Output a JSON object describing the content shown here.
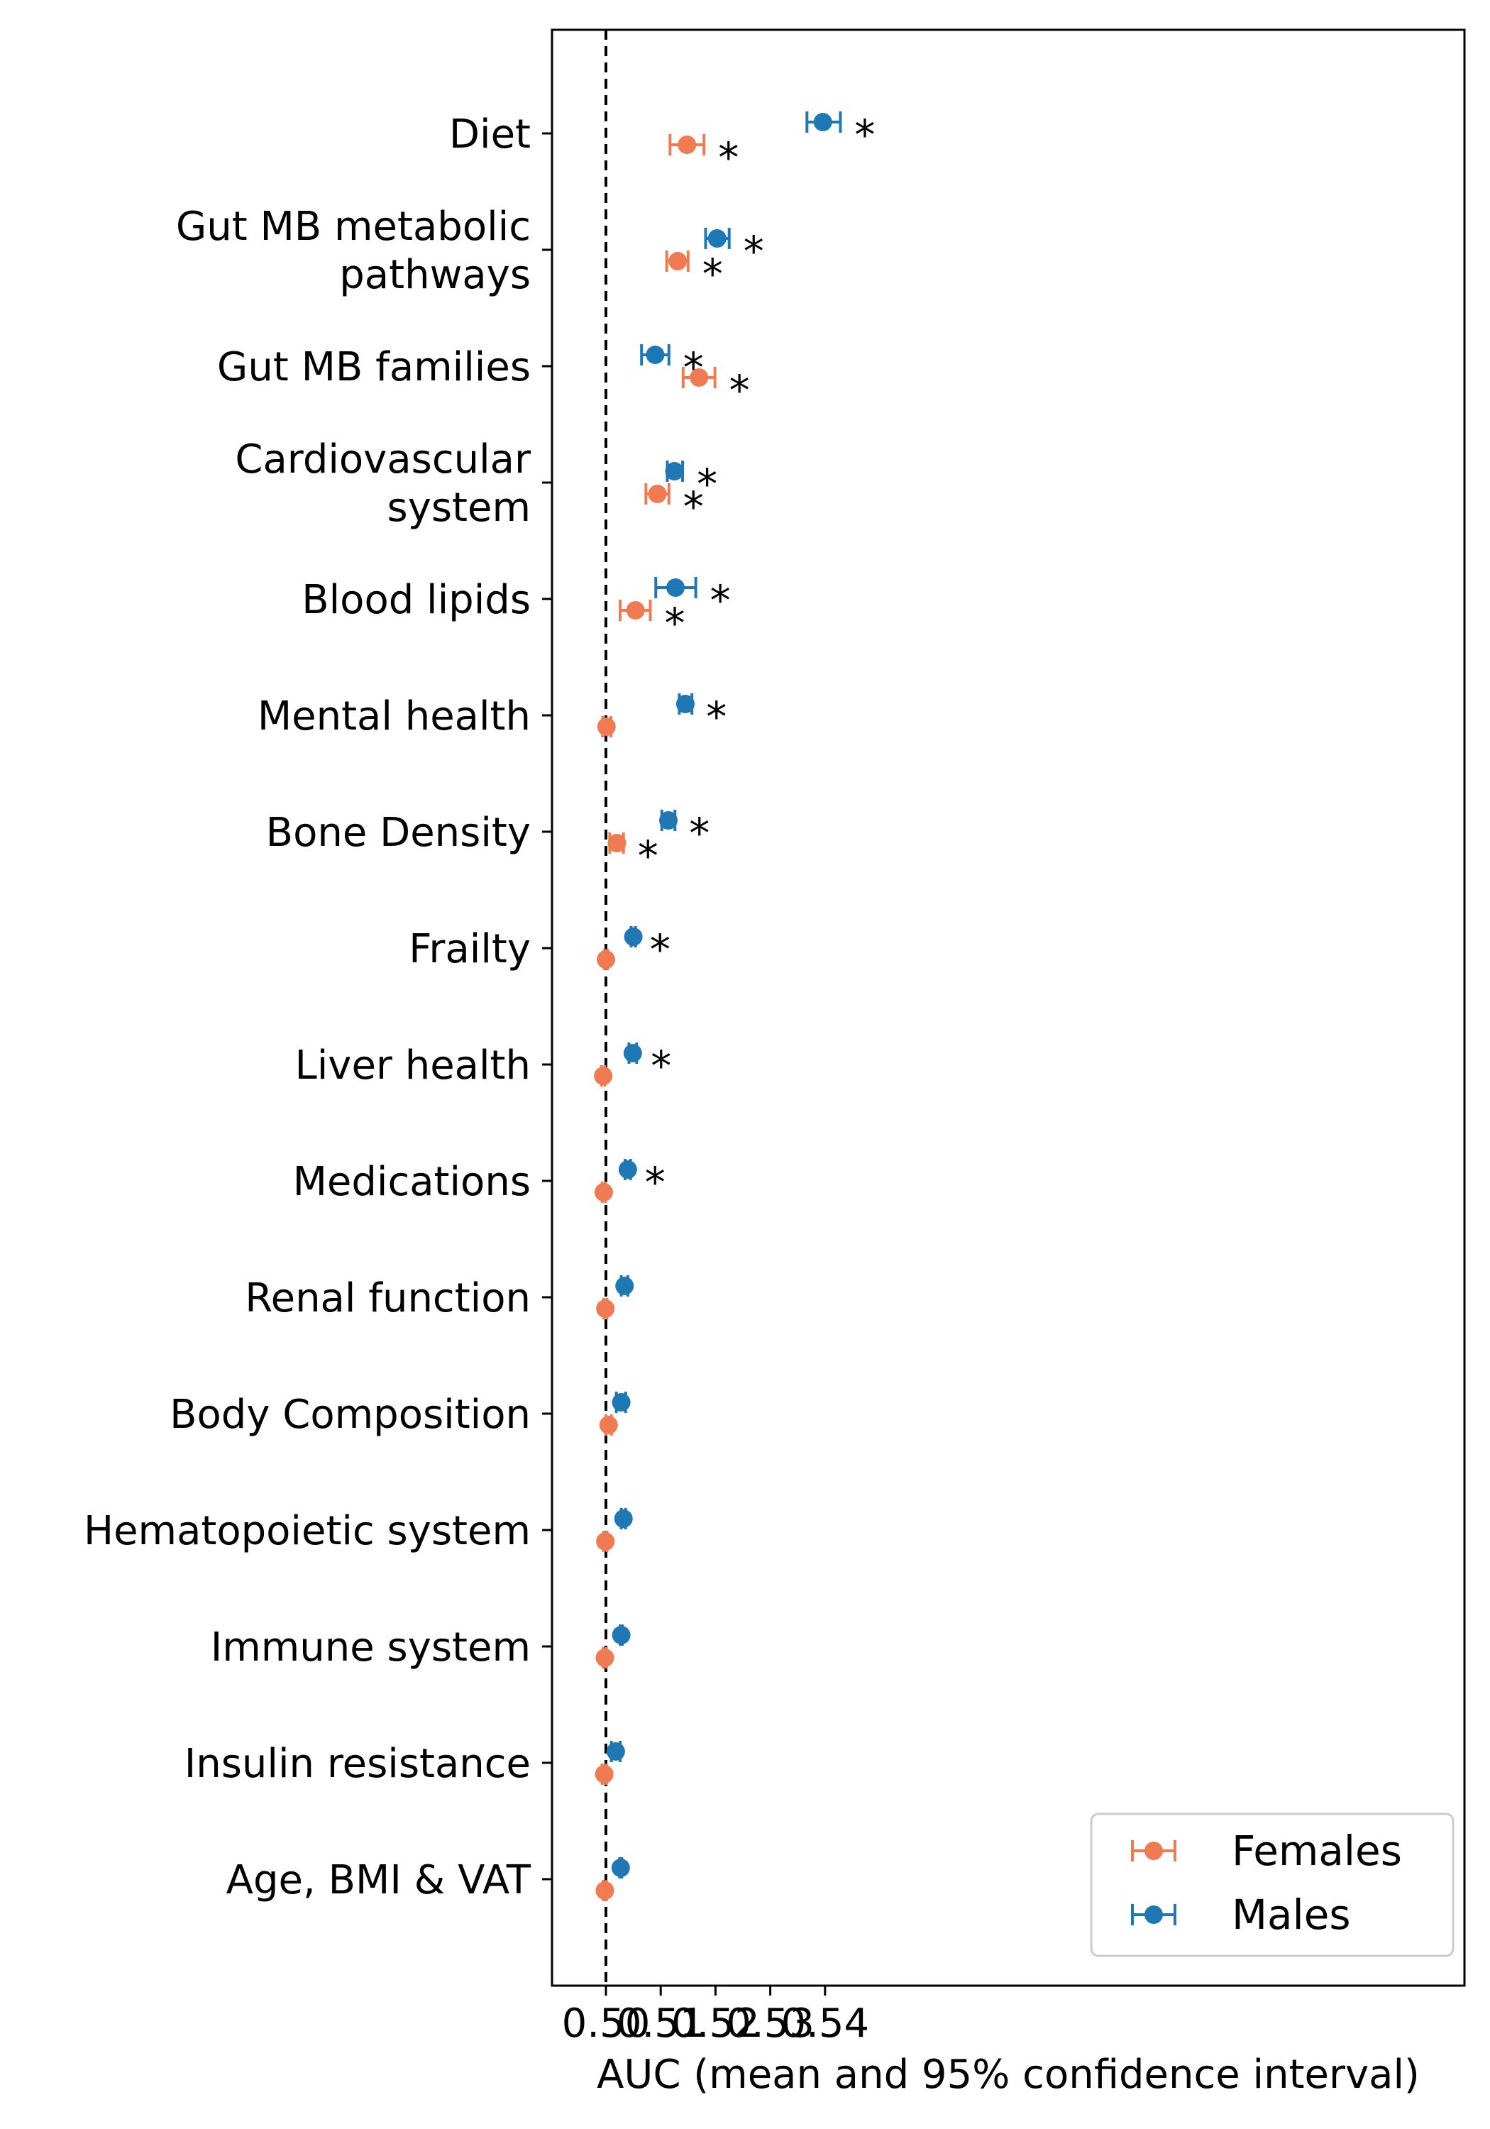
{
  "chart_data": {
    "type": "errorbar",
    "orientation": "horizontal",
    "xlabel": "AUC (mean and 95% confidence interval)",
    "ylabel": "",
    "xlim": [
      0.4973,
      0.5448
    ],
    "xticks": [
      0.5,
      0.51,
      0.52,
      0.53,
      0.54
    ],
    "xtick_labels": [
      "0.50",
      "0.51",
      "0.52",
      "0.53",
      "0.54"
    ],
    "reference_line": {
      "x": 0.5,
      "style": "dashed",
      "color": "#000000"
    },
    "legend": {
      "position": "lower right"
    },
    "categories": [
      [
        "Diet"
      ],
      [
        "Gut MB metabolic",
        "pathways"
      ],
      [
        "Gut MB families"
      ],
      [
        "Cardiovascular",
        "system"
      ],
      [
        "Blood lipids"
      ],
      [
        "Mental health"
      ],
      [
        "Bone Density"
      ],
      [
        "Frailty"
      ],
      [
        "Liver health"
      ],
      [
        "Medications"
      ],
      [
        "Renal function"
      ],
      [
        "Body Composition"
      ],
      [
        "Hematopoietic system"
      ],
      [
        "Immune system"
      ],
      [
        "Insulin resistance"
      ],
      [
        "Age, BMI & VAT"
      ]
    ],
    "significance_marker": "*",
    "series": [
      {
        "name": "Females",
        "color": "#f07b53",
        "mean": [
          0.5148,
          0.5131,
          0.517,
          0.5094,
          0.5054,
          0.5001,
          0.502,
          0.5,
          0.4995,
          0.4996,
          0.4999,
          0.5005,
          0.4999,
          0.4998,
          0.4997,
          0.4998
        ],
        "lower": [
          0.5117,
          0.5111,
          0.5141,
          0.5073,
          0.5026,
          0.4994,
          0.5007,
          0.4997,
          0.4992,
          0.4993,
          0.4996,
          0.5,
          0.4996,
          0.4995,
          0.4993,
          0.4995
        ],
        "upper": [
          0.5179,
          0.515,
          0.5199,
          0.5115,
          0.5081,
          0.5009,
          0.5032,
          0.5003,
          0.4998,
          0.4999,
          0.5002,
          0.501,
          0.5002,
          0.5001,
          0.5001,
          0.5001
        ],
        "significant": [
          true,
          true,
          true,
          true,
          true,
          false,
          true,
          false,
          false,
          false,
          false,
          false,
          false,
          false,
          false,
          false
        ]
      },
      {
        "name": "Males",
        "color": "#1f77b4",
        "mean": [
          0.5396,
          0.5203,
          0.509,
          0.5125,
          0.5127,
          0.5145,
          0.5114,
          0.505,
          0.5049,
          0.504,
          0.5034,
          0.5028,
          0.5032,
          0.5028,
          0.5018,
          0.5027
        ],
        "lower": [
          0.5367,
          0.5182,
          0.5065,
          0.5112,
          0.5091,
          0.5134,
          0.5102,
          0.5046,
          0.5042,
          0.5035,
          0.5028,
          0.5019,
          0.5028,
          0.5026,
          0.501,
          0.5025
        ],
        "upper": [
          0.5428,
          0.5225,
          0.5115,
          0.514,
          0.5164,
          0.5157,
          0.5126,
          0.5054,
          0.5056,
          0.5045,
          0.504,
          0.5036,
          0.5036,
          0.503,
          0.5026,
          0.5029
        ],
        "significant": [
          true,
          true,
          true,
          true,
          true,
          true,
          true,
          true,
          true,
          true,
          false,
          false,
          false,
          false,
          false,
          false
        ]
      }
    ]
  }
}
